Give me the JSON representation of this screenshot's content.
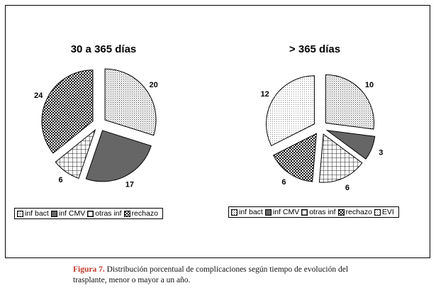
{
  "chart_data": [
    {
      "type": "pie",
      "title": "30 a 365 días",
      "categories": [
        "inf bact",
        "inf CMV",
        "otras inf",
        "rechazo"
      ],
      "values": [
        20,
        17,
        6,
        24
      ],
      "data_labels": [
        "20",
        "17",
        "6",
        "24"
      ],
      "legend": [
        "inf bact",
        "inf CMV",
        "otras inf",
        "rechazo"
      ],
      "legend_position": "bottom",
      "exploded": true
    },
    {
      "type": "pie",
      "title": "> 365 días",
      "categories": [
        "inf bact",
        "inf CMV",
        "otras inf",
        "rechazo",
        "EVI"
      ],
      "values": [
        10,
        3,
        6,
        6,
        12
      ],
      "data_labels": [
        "10",
        "3",
        "6",
        "6",
        "12"
      ],
      "legend": [
        "inf bact",
        "inf CMV",
        "otras inf",
        "rechazo",
        "EVI"
      ],
      "legend_position": "bottom",
      "exploded": true
    }
  ],
  "caption": {
    "label": "Figura 7.",
    "text": "Distribución porcentual de complicaciones según tiempo de evolución del trasplante, menor o mayor a un año."
  }
}
